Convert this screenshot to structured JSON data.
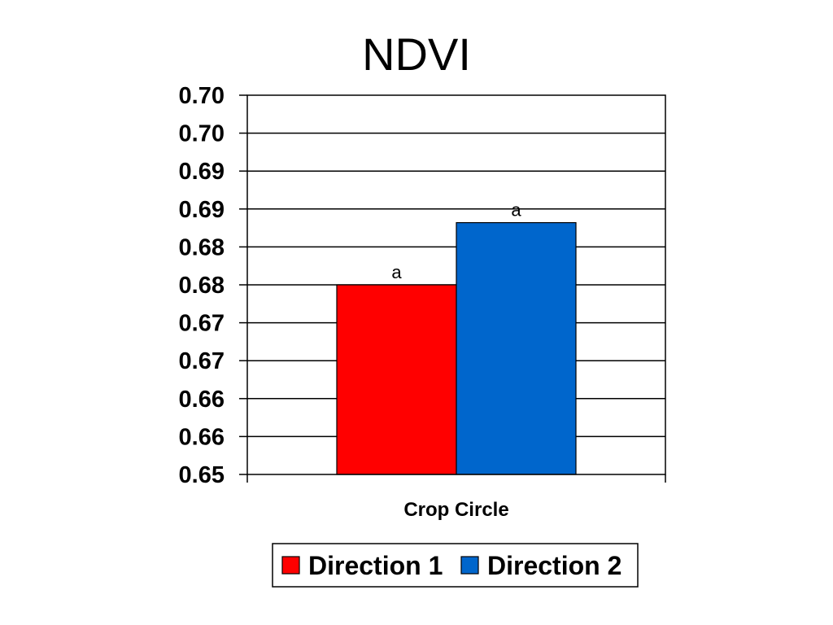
{
  "chart_data": {
    "type": "bar",
    "title": "NDVI",
    "categories": [
      "Crop Circle"
    ],
    "series": [
      {
        "name": "Direction 1",
        "color": "#ff0000",
        "values": [
          0.675
        ],
        "label": "a"
      },
      {
        "name": "Direction 2",
        "color": "#0066cc",
        "values": [
          0.6832
        ],
        "label": "a"
      }
    ],
    "ylim": [
      0.65,
      0.7
    ],
    "yticks": [
      0.65,
      0.655,
      0.66,
      0.665,
      0.67,
      0.675,
      0.68,
      0.685,
      0.69,
      0.695,
      0.7
    ],
    "ytick_labels": [
      "0.65",
      "0.66",
      "0.66",
      "0.67",
      "0.67",
      "0.68",
      "0.68",
      "0.69",
      "0.69",
      "0.70",
      "0.70"
    ],
    "xlabel": "",
    "ylabel": "",
    "grid": true,
    "legend": "bottom"
  }
}
